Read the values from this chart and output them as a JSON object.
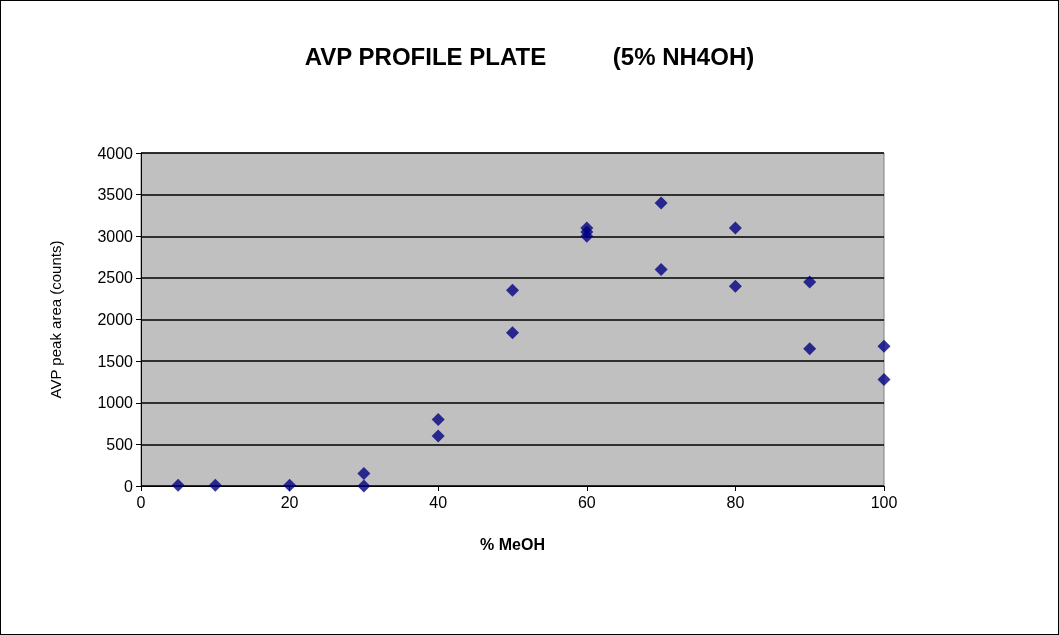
{
  "chart_data": {
    "type": "scatter",
    "title": "AVP PROFILE PLATE          (5% NH4OH)",
    "xlabel": "% MeOH",
    "ylabel": "AVP peak area (counts)",
    "x": [
      5,
      10,
      20,
      30,
      30,
      40,
      40,
      50,
      50,
      60,
      60,
      60,
      70,
      70,
      80,
      80,
      90,
      90,
      100,
      100
    ],
    "series": [
      {
        "color": "#000080",
        "values": [
          10,
          10,
          10,
          0,
          150,
          800,
          600,
          2350,
          1840,
          3100,
          3050,
          3000,
          3400,
          2600,
          3100,
          2400,
          2450,
          1650,
          1680,
          1280
        ]
      }
    ],
    "xlim": [
      0,
      100
    ],
    "xticks": [
      0,
      20,
      40,
      60,
      80,
      100
    ],
    "ylim": [
      0,
      4000
    ],
    "yticks": [
      0,
      500,
      1000,
      1500,
      2000,
      2500,
      3000,
      3500,
      4000
    ],
    "grid": "y",
    "marker": "diamond"
  }
}
